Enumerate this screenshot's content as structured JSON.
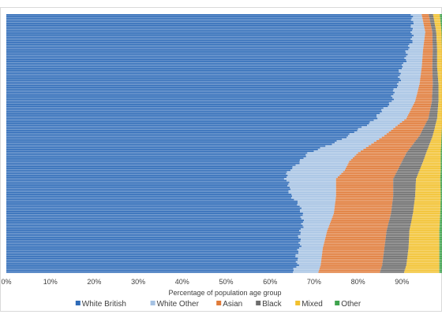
{
  "chart_data": {
    "type": "area",
    "orientation": "horizontal-stacked-100",
    "xlabel": "Percentage of population age group",
    "ylabel": "",
    "xlim": [
      0,
      100
    ],
    "x_ticks": [
      "0%",
      "10%",
      "20%",
      "30%",
      "40%",
      "50%",
      "60%",
      "70%",
      "80%",
      "90%"
    ],
    "grid": false,
    "legend_position": "bottom",
    "y_axis_labels_visible": false,
    "colors": {
      "White British": "#2e6bb8",
      "White Other": "#a5c2e3",
      "Asian": "#e07b39",
      "Black": "#6d6d6d",
      "Mixed": "#f2c12e",
      "Other": "#3fa34d"
    },
    "rows_top_to_bottom_samples": [
      {
        "row": 0,
        "White British": 92.0,
        "White Other": 2.5,
        "Asian": 1.6,
        "Black": 1.0,
        "Mixed": 1.5,
        "Other": 1.4
      },
      {
        "row": 10,
        "White British": 92.5,
        "White Other": 2.8,
        "Asian": 1.6,
        "Black": 0.9,
        "Mixed": 1.2,
        "Other": 1.0
      },
      {
        "row": 20,
        "White British": 91.5,
        "White Other": 3.3,
        "Asian": 2.2,
        "Black": 1.0,
        "Mixed": 1.1,
        "Other": 0.9
      },
      {
        "row": 30,
        "White British": 90.0,
        "White Other": 4.5,
        "Asian": 2.4,
        "Black": 1.1,
        "Mixed": 1.1,
        "Other": 0.9
      },
      {
        "row": 40,
        "White British": 89.0,
        "White Other": 5.0,
        "Asian": 3.0,
        "Black": 1.3,
        "Mixed": 0.9,
        "Other": 0.8
      },
      {
        "row": 50,
        "White British": 87.5,
        "White Other": 5.5,
        "Asian": 3.8,
        "Black": 1.5,
        "Mixed": 0.9,
        "Other": 0.8
      },
      {
        "row": 60,
        "White British": 84.0,
        "White Other": 7.0,
        "Asian": 5.0,
        "Black": 2.0,
        "Mixed": 1.2,
        "Other": 0.8
      },
      {
        "row": 70,
        "White British": 78.0,
        "White Other": 8.0,
        "Asian": 8.0,
        "Black": 3.0,
        "Mixed": 2.0,
        "Other": 1.0
      },
      {
        "row": 80,
        "White British": 69.0,
        "White Other": 11.0,
        "Asian": 11.0,
        "Black": 4.5,
        "Mixed": 3.3,
        "Other": 1.2
      },
      {
        "row": 85,
        "White British": 66.5,
        "White Other": 11.5,
        "Asian": 12.0,
        "Black": 4.8,
        "Mixed": 4.0,
        "Other": 1.2
      },
      {
        "row": 90,
        "White British": 64.5,
        "White Other": 12.5,
        "Asian": 12.0,
        "Black": 5.0,
        "Mixed": 4.8,
        "Other": 1.2
      },
      {
        "row": 95,
        "White British": 63.5,
        "White Other": 11.5,
        "Asian": 13.0,
        "Black": 5.2,
        "Mixed": 5.5,
        "Other": 1.3
      },
      {
        "row": 105,
        "White British": 65.0,
        "White Other": 10.0,
        "Asian": 13.0,
        "Black": 5.0,
        "Mixed": 5.8,
        "Other": 1.2
      },
      {
        "row": 115,
        "White British": 67.5,
        "White Other": 7.0,
        "Asian": 13.0,
        "Black": 5.0,
        "Mixed": 6.2,
        "Other": 1.3
      },
      {
        "row": 125,
        "White British": 67.0,
        "White Other": 6.0,
        "Asian": 13.5,
        "Black": 5.2,
        "Mixed": 6.8,
        "Other": 1.5
      },
      {
        "row": 135,
        "White British": 66.5,
        "White Other": 5.5,
        "Asian": 14.0,
        "Black": 5.5,
        "Mixed": 7.0,
        "Other": 1.5
      },
      {
        "row": 145,
        "White British": 66.0,
        "White Other": 5.5,
        "Asian": 14.0,
        "Black": 5.5,
        "Mixed": 7.5,
        "Other": 1.5
      },
      {
        "row": 149,
        "White British": 65.0,
        "White Other": 6.0,
        "Asian": 14.0,
        "Black": 5.5,
        "Mixed": 8.0,
        "Other": 1.5
      }
    ],
    "total_rows": 150,
    "series_order": [
      "White British",
      "White Other",
      "Asian",
      "Black",
      "Mixed",
      "Other"
    ]
  },
  "legend": [
    {
      "label": "White British",
      "color": "#2e6bb8"
    },
    {
      "label": "White Other",
      "color": "#a5c2e3"
    },
    {
      "label": "Asian",
      "color": "#e07b39"
    },
    {
      "label": "Black",
      "color": "#6d6d6d"
    },
    {
      "label": "Mixed",
      "color": "#f2c12e"
    },
    {
      "label": "Other",
      "color": "#3fa34d"
    }
  ]
}
